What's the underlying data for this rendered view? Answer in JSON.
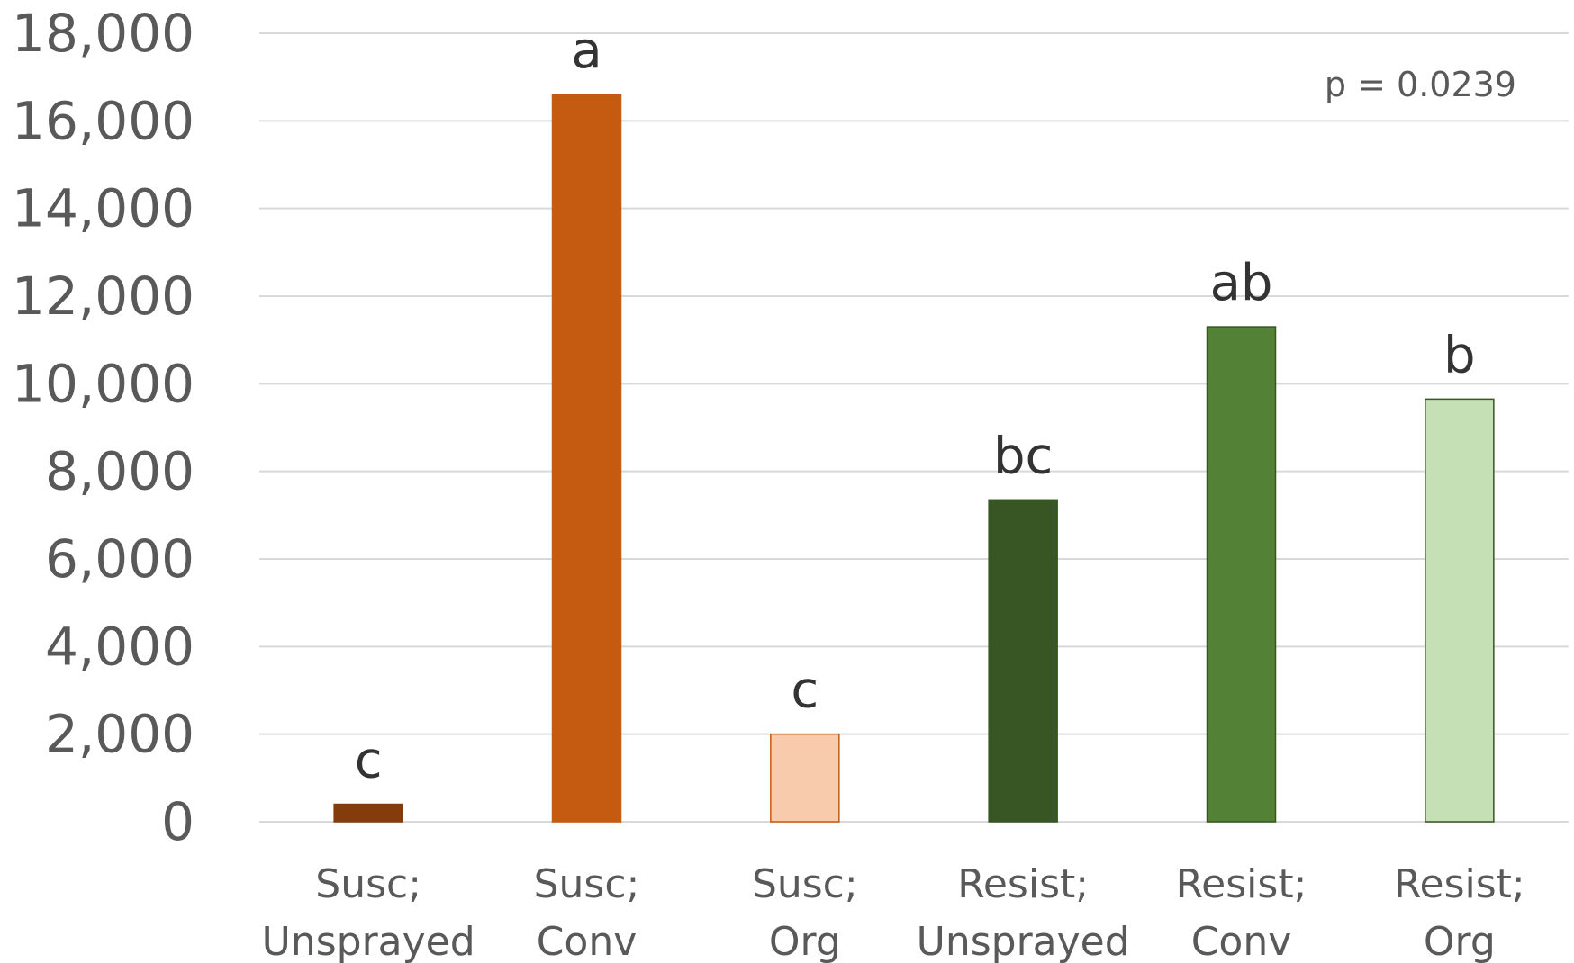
{
  "chart_data": {
    "type": "bar",
    "title": "",
    "xlabel": "",
    "ylabel": "",
    "ylim": [
      0,
      18000
    ],
    "yticks": [
      0,
      2000,
      4000,
      6000,
      8000,
      10000,
      12000,
      14000,
      16000,
      18000
    ],
    "ytick_labels": [
      "0",
      "2,000",
      "4,000",
      "6,000",
      "8,000",
      "10,000",
      "12,000",
      "14,000",
      "16,000",
      "18,000"
    ],
    "grid": true,
    "legend": "none",
    "annotation": "p = 0.0239",
    "categories": [
      [
        "Susc;",
        "Unsprayed"
      ],
      [
        "Susc;",
        "Conv"
      ],
      [
        "Susc;",
        "Org"
      ],
      [
        "Resist;",
        "Unsprayed"
      ],
      [
        "Resist;",
        "Conv"
      ],
      [
        "Resist;",
        "Org"
      ]
    ],
    "values": [
      400,
      16600,
      2000,
      7350,
      11300,
      9650
    ],
    "significance_letters": [
      "c",
      "a",
      "c",
      "bc",
      "ab",
      "b"
    ],
    "colors": [
      "#843C0C",
      "#C55A11",
      "#F8CBAD",
      "#375623",
      "#538135",
      "#C5E0B4"
    ]
  }
}
